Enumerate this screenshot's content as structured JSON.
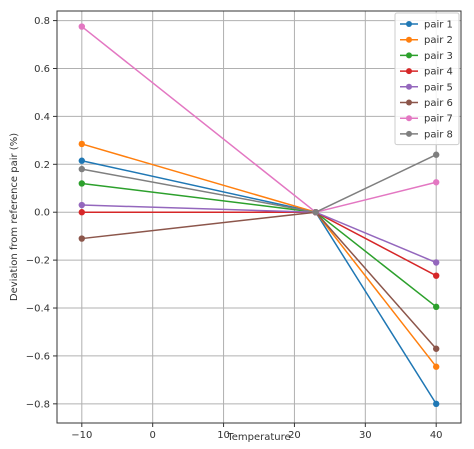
{
  "chart_data": {
    "type": "line",
    "title": "",
    "xlabel": "Temperature",
    "ylabel": "Deviation from reference pair (%)",
    "x": [
      -10,
      23,
      40
    ],
    "xlim": [
      -13.5,
      43.5
    ],
    "ylim": [
      -0.88,
      0.84
    ],
    "xticks": [
      -10,
      0,
      10,
      20,
      30,
      40
    ],
    "xtick_labels": [
      "−10",
      "0",
      "10",
      "20",
      "30",
      "40"
    ],
    "yticks": [
      -0.8,
      -0.6,
      -0.4,
      -0.2,
      0.0,
      0.2,
      0.4,
      0.6,
      0.8
    ],
    "ytick_labels": [
      "−0.8",
      "−0.6",
      "−0.4",
      "−0.2",
      "0.0",
      "0.2",
      "0.4",
      "0.6",
      "0.8"
    ],
    "grid": true,
    "legend_position": "top-right",
    "series": [
      {
        "name": "pair 1",
        "color": "#1f77b4",
        "values": [
          0.215,
          0.0,
          -0.8
        ]
      },
      {
        "name": "pair 2",
        "color": "#ff7f0e",
        "values": [
          0.285,
          0.0,
          -0.645
        ]
      },
      {
        "name": "pair 3",
        "color": "#2ca02c",
        "values": [
          0.12,
          0.0,
          -0.395
        ]
      },
      {
        "name": "pair 4",
        "color": "#d62728",
        "values": [
          0.0,
          0.0,
          -0.265
        ]
      },
      {
        "name": "pair 5",
        "color": "#9467bd",
        "values": [
          0.03,
          0.0,
          -0.21
        ]
      },
      {
        "name": "pair 6",
        "color": "#8c564b",
        "values": [
          -0.11,
          0.0,
          -0.57
        ]
      },
      {
        "name": "pair 7",
        "color": "#e377c2",
        "values": [
          0.775,
          0.0,
          0.125
        ]
      },
      {
        "name": "pair 8",
        "color": "#7f7f7f",
        "values": [
          0.18,
          0.0,
          0.24
        ]
      }
    ]
  }
}
